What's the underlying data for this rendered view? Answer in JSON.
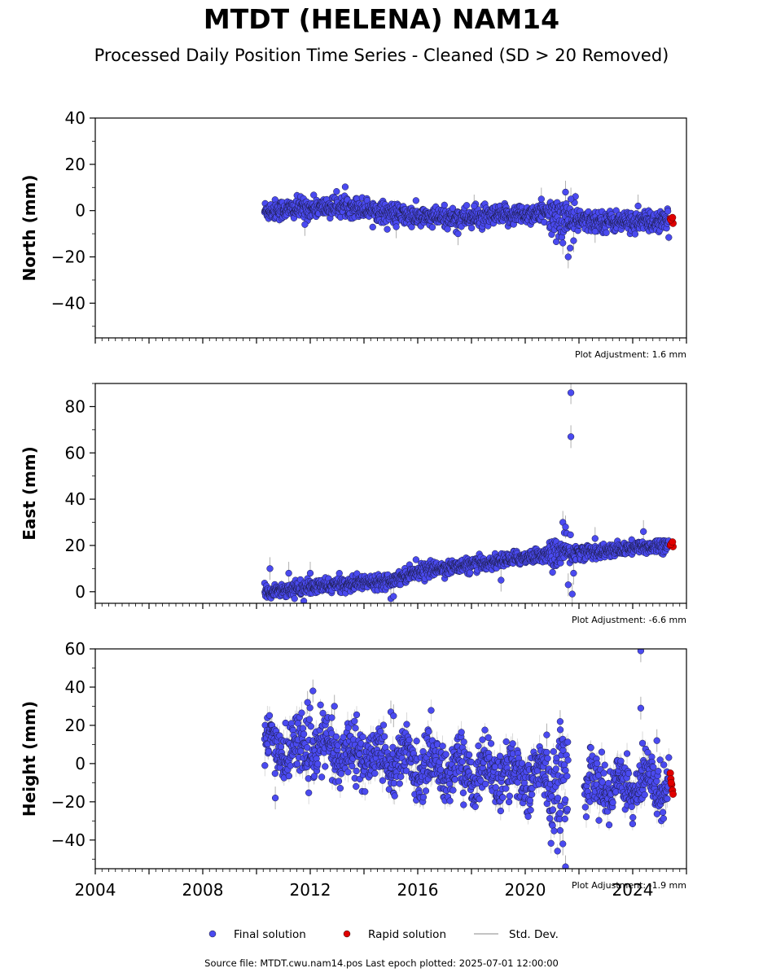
{
  "title": "MTDT (HELENA) NAM14",
  "subtitle": "Processed Daily Position Time Series - Cleaned (SD > 20 Removed)",
  "source_text": "Source file: MTDT.cwu.nam14.pos  Last epoch plotted: 2025-07-01 12:00:00",
  "colors": {
    "final": "#4a4af0",
    "rapid": "#e00000",
    "std": "#b0b0b0"
  },
  "chart_data": [
    {
      "type": "scatter",
      "ylabel": "North (mm)",
      "adjustment": "Plot Adjustment: 1.6 mm",
      "xlim": [
        2004,
        2026
      ],
      "ylim": [
        -55,
        40
      ],
      "yticks": [
        -40,
        -20,
        0,
        20,
        40
      ],
      "trend": [
        [
          2010.3,
          0.0
        ],
        [
          2013.5,
          2.0
        ],
        [
          2016.0,
          -3.0
        ],
        [
          2018.5,
          -3.0
        ],
        [
          2020.5,
          -1.0
        ],
        [
          2022.0,
          -4.5
        ],
        [
          2025.4,
          -5.0
        ]
      ],
      "scatter": 2.2,
      "outliers": [
        [
          2011.8,
          -6
        ],
        [
          2015.2,
          -7
        ],
        [
          2017.5,
          -10
        ],
        [
          2018.1,
          2
        ],
        [
          2020.6,
          5
        ],
        [
          2021.4,
          -14
        ],
        [
          2021.6,
          -20
        ],
        [
          2021.5,
          8
        ],
        [
          2021.7,
          5
        ],
        [
          2024.2,
          2
        ],
        [
          2021.8,
          -13
        ],
        [
          2022.6,
          -9
        ]
      ],
      "rapid": [
        [
          2025.4,
          -3.5
        ],
        [
          2025.45,
          -4.5
        ],
        [
          2025.5,
          -5.5
        ],
        [
          2025.42,
          -4.0
        ],
        [
          2025.48,
          -3.0
        ]
      ]
    },
    {
      "type": "scatter",
      "ylabel": "East (mm)",
      "adjustment": "Plot Adjustment: -6.6 mm",
      "xlim": [
        2004,
        2026
      ],
      "ylim": [
        -5,
        90
      ],
      "yticks": [
        0,
        20,
        40,
        60,
        80
      ],
      "trend": [
        [
          2010.3,
          0.0
        ],
        [
          2013.0,
          3.0
        ],
        [
          2015.0,
          5.0
        ],
        [
          2016.0,
          9.0
        ],
        [
          2018.0,
          11.5
        ],
        [
          2020.0,
          15.0
        ],
        [
          2021.5,
          17.0
        ],
        [
          2023.0,
          17.5
        ],
        [
          2025.4,
          20.5
        ]
      ],
      "scatter": 1.5,
      "outliers": [
        [
          2010.5,
          10
        ],
        [
          2011.2,
          8
        ],
        [
          2012.0,
          8
        ],
        [
          2015.0,
          -3
        ],
        [
          2015.1,
          -2
        ],
        [
          2019.1,
          5
        ],
        [
          2021.4,
          30
        ],
        [
          2021.5,
          28
        ],
        [
          2021.7,
          86
        ],
        [
          2021.7,
          67
        ],
        [
          2021.75,
          -1
        ],
        [
          2021.8,
          8
        ],
        [
          2021.6,
          3
        ],
        [
          2024.4,
          26
        ],
        [
          2022.6,
          23
        ]
      ],
      "rapid": [
        [
          2025.4,
          20
        ],
        [
          2025.45,
          21
        ],
        [
          2025.5,
          19.5
        ],
        [
          2025.42,
          20.5
        ],
        [
          2025.48,
          21.5
        ]
      ]
    },
    {
      "type": "scatter",
      "ylabel": "Height (mm)",
      "adjustment": "Plot Adjustment: -1.9 mm",
      "xlim": [
        2004,
        2026
      ],
      "ylim": [
        -55,
        60
      ],
      "yticks": [
        -40,
        -20,
        0,
        20,
        40,
        60
      ],
      "trend": [
        [
          2010.3,
          8.0
        ],
        [
          2012.0,
          8.0
        ],
        [
          2014.0,
          5.0
        ],
        [
          2016.0,
          0.0
        ],
        [
          2018.0,
          -4.0
        ],
        [
          2020.0,
          -6.0
        ],
        [
          2021.5,
          -10.0
        ],
        [
          2022.5,
          -12.0
        ],
        [
          2025.4,
          -10.0
        ]
      ],
      "scatter": 7,
      "gap": [
        2021.6,
        2022.2
      ],
      "outliers": [
        [
          2010.7,
          -18
        ],
        [
          2011.9,
          32
        ],
        [
          2012.1,
          38
        ],
        [
          2012.8,
          24
        ],
        [
          2012.9,
          30
        ],
        [
          2015.0,
          27
        ],
        [
          2015.1,
          25
        ],
        [
          2021.3,
          22
        ],
        [
          2021.4,
          -42
        ],
        [
          2021.5,
          -54
        ],
        [
          2021.3,
          -35
        ],
        [
          2024.3,
          59
        ],
        [
          2024.3,
          29
        ],
        [
          2020.8,
          15
        ],
        [
          2024.9,
          12
        ]
      ],
      "rapid": [
        [
          2025.4,
          -5
        ],
        [
          2025.42,
          -8
        ],
        [
          2025.45,
          -11
        ],
        [
          2025.48,
          -14
        ],
        [
          2025.5,
          -16
        ],
        [
          2025.43,
          -10
        ]
      ]
    }
  ],
  "x_tick_labels": [
    "2004",
    "2008",
    "2012",
    "2016",
    "2020",
    "2024"
  ],
  "legend": [
    {
      "label": "Final solution",
      "kind": "final"
    },
    {
      "label": "Rapid solution",
      "kind": "rapid"
    },
    {
      "label": "Std. Dev.",
      "kind": "std"
    }
  ]
}
